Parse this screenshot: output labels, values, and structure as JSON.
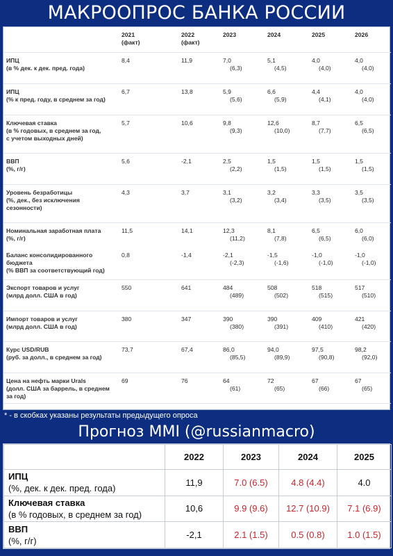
{
  "title": "МАКРООПРОС БАНКА РОССИИ",
  "table1": {
    "headers": [
      {
        "year": "2021",
        "note": "(факт)"
      },
      {
        "year": "2022",
        "note": "(факт)"
      },
      {
        "year": "2023",
        "note": ""
      },
      {
        "year": "2024",
        "note": ""
      },
      {
        "year": "2025",
        "note": ""
      },
      {
        "year": "2026",
        "note": ""
      }
    ],
    "rows": [
      {
        "label": [
          "ИПЦ",
          "(в % дек. к дек. пред. года)"
        ],
        "vals": [
          [
            "8,4",
            ""
          ],
          [
            "11,9",
            ""
          ],
          [
            "7,0",
            "(6,3)"
          ],
          [
            "5,1",
            "(4,5)"
          ],
          [
            "4,0",
            "(4,0)"
          ],
          [
            "4,0",
            "(4,0)"
          ]
        ]
      },
      {
        "label": [
          "ИПЦ",
          "(% к пред. году, в среднем за год)"
        ],
        "vals": [
          [
            "6,7",
            ""
          ],
          [
            "13,8",
            ""
          ],
          [
            "5,9",
            "(5,6)"
          ],
          [
            "6,6",
            "(5,9)"
          ],
          [
            "4,4",
            "(4,1)"
          ],
          [
            "4,0",
            "(4,0)"
          ]
        ]
      },
      {
        "label": [
          "Ключевая ставка",
          "(в % годовых, в среднем за год,",
          "с учетом выходных дней)"
        ],
        "vals": [
          [
            "5,7",
            ""
          ],
          [
            "10,6",
            ""
          ],
          [
            "9,8",
            "(9,3)"
          ],
          [
            "12,6",
            "(10,0)"
          ],
          [
            "8,7",
            "(7,7)"
          ],
          [
            "6,5",
            "(6,5)"
          ]
        ]
      },
      {
        "label": [
          "ВВП",
          "(%, г/г)"
        ],
        "vals": [
          [
            "5,6",
            ""
          ],
          [
            "-2,1",
            ""
          ],
          [
            "2,5",
            "(2,2)"
          ],
          [
            "1,5",
            "(1,5)"
          ],
          [
            "1,5",
            "(1,5)"
          ],
          [
            "1,5",
            "(1,5)"
          ]
        ]
      },
      {
        "label": [
          "Уровень безработицы",
          "(%, дек., без исключения",
          "сезонности)"
        ],
        "vals": [
          [
            "4,3",
            ""
          ],
          [
            "3,7",
            ""
          ],
          [
            "3,1",
            "(3,2)"
          ],
          [
            "3,2",
            "(3,4)"
          ],
          [
            "3,3",
            "(3,5)"
          ],
          [
            "3,5",
            "(3,5)"
          ]
        ]
      },
      {
        "label": [
          "Номинальная заработная плата",
          "(%, г/г)"
        ],
        "vals": [
          [
            "11,5",
            ""
          ],
          [
            "14,1",
            ""
          ],
          [
            "12,3",
            "(11,2)"
          ],
          [
            "8,1",
            "(7,8)"
          ],
          [
            "6,5",
            "(6,5)"
          ],
          [
            "6,0",
            "(6,0)"
          ]
        ]
      },
      {
        "label": [
          "Баланс консолидированного",
          "бюджета",
          "(% ВВП за соответствующий год)"
        ],
        "vals": [
          [
            "0,8",
            ""
          ],
          [
            "-1,4",
            ""
          ],
          [
            "-2,1",
            "(-2,3)"
          ],
          [
            "-1,5",
            "(-1,6)"
          ],
          [
            "-1,0",
            "(-1,0)"
          ],
          [
            "-1,0",
            "(-1,0)"
          ]
        ]
      },
      {
        "label": [
          "Экспорт товаров и услуг",
          "(млрд долл. США в год)"
        ],
        "vals": [
          [
            "550",
            ""
          ],
          [
            "641",
            ""
          ],
          [
            "484",
            "(489)"
          ],
          [
            "508",
            "(502)"
          ],
          [
            "518",
            "(515)"
          ],
          [
            "517",
            "(510)"
          ]
        ]
      },
      {
        "label": [
          "Импорт товаров и услуг",
          "(млрд долл. США в год)"
        ],
        "vals": [
          [
            "380",
            ""
          ],
          [
            "347",
            ""
          ],
          [
            "390",
            "(380)"
          ],
          [
            "390",
            "(391)"
          ],
          [
            "409",
            "(410)"
          ],
          [
            "421",
            "(420)"
          ]
        ]
      },
      {
        "label": [
          "Курс USD/RUB",
          "(руб. за долл., в среднем за год)"
        ],
        "vals": [
          [
            "73,7",
            ""
          ],
          [
            "67,4",
            ""
          ],
          [
            "86,0",
            "(85,5)"
          ],
          [
            "94,0",
            "(89,9)"
          ],
          [
            "97,5",
            "(90,8)"
          ],
          [
            "98,2",
            "(92,0)"
          ]
        ]
      },
      {
        "label": [
          "Цена на нефть марки Urals",
          "(долл. США за баррель, в среднем",
          "за год)"
        ],
        "vals": [
          [
            "69",
            ""
          ],
          [
            "76",
            ""
          ],
          [
            "64",
            "(61)"
          ],
          [
            "72",
            "(65)"
          ],
          [
            "67",
            "(66)"
          ],
          [
            "67",
            "(65)"
          ]
        ]
      }
    ]
  },
  "footnote": "* - в скобках указаны результаты предыдущего опроса",
  "title2": "Прогноз MMI (@russianmacro)",
  "table2": {
    "headers": [
      "2022",
      "2023",
      "2024",
      "2025"
    ],
    "rows": [
      {
        "name": "ИПЦ",
        "sub": "(%, дек. к дек. пред. года)",
        "vals": [
          "11,9",
          "7.0 (6.5)",
          "4.8 (4.4)",
          "4.0"
        ]
      },
      {
        "name": "Ключевая ставка",
        "sub": "(в % годовых, в среднем за год)",
        "vals": [
          "10,6",
          "9.9 (9.6)",
          "12.7 (10.9)",
          "7.1 (6.9)"
        ]
      },
      {
        "name": "ВВП",
        "sub": "(%, г/г)",
        "vals": [
          "-2,1",
          "2.1 (1.5)",
          "0.5 (0.8)",
          "1.0 (1.5)"
        ]
      }
    ],
    "red_color": "#c8252b"
  },
  "colors": {
    "background": "#0d2e80",
    "panel": "#ffffff"
  }
}
